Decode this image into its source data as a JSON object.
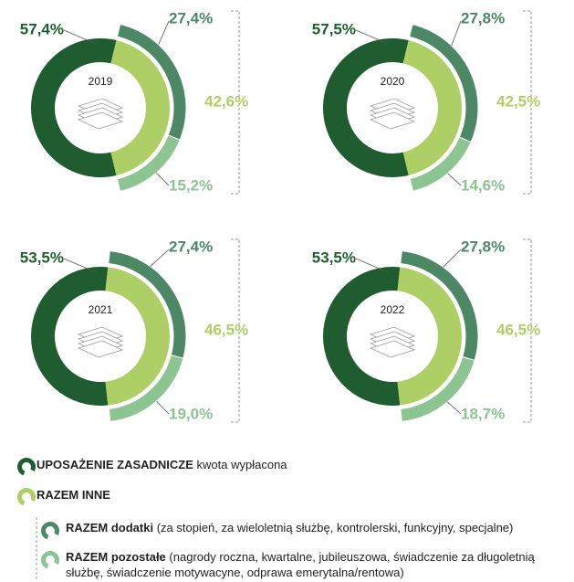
{
  "chart_data": [
    {
      "type": "donut",
      "title": "2019",
      "values": [
        57.4,
        42.6,
        27.4,
        15.2
      ],
      "value_labels": [
        "57,4%",
        "42,6%",
        "27,4%",
        "15,2%"
      ]
    },
    {
      "type": "donut",
      "title": "2020",
      "values": [
        57.5,
        42.5,
        27.8,
        14.6
      ],
      "value_labels": [
        "57,5%",
        "42,5%",
        "27,8%",
        "14,6%"
      ]
    },
    {
      "type": "donut",
      "title": "2021",
      "values": [
        53.5,
        46.5,
        27.4,
        19.0
      ],
      "value_labels": [
        "53,5%",
        "46,5%",
        "27,4%",
        "19,0%"
      ]
    },
    {
      "type": "donut",
      "title": "2022",
      "values": [
        53.5,
        46.5,
        27.8,
        18.7
      ],
      "value_labels": [
        "53,5%",
        "46,5%",
        "27,8%",
        "18,7%"
      ]
    }
  ],
  "legend": {
    "items": [
      {
        "name": "UPOSAŻENIE ZASADNICZE",
        "note": "kwota wypłacona",
        "color": "#1f5d30"
      },
      {
        "name": "RAZEM INNE",
        "color": "#aecf66"
      },
      {
        "name": "RAZEM dodatki",
        "note": "(za stopień, za wieloletnią służbę, kontrolerski, funkcyjny, specjalne)",
        "color": "#4c8865"
      },
      {
        "name": "RAZEM pozostałe",
        "note": "(nagrody roczna, kwartalne, jubileuszowa, świadczenie za długoletnią służbę, świadczenie motywacyne, odprawa emerytalna/rentowa)",
        "color": "#8cc492"
      }
    ]
  }
}
